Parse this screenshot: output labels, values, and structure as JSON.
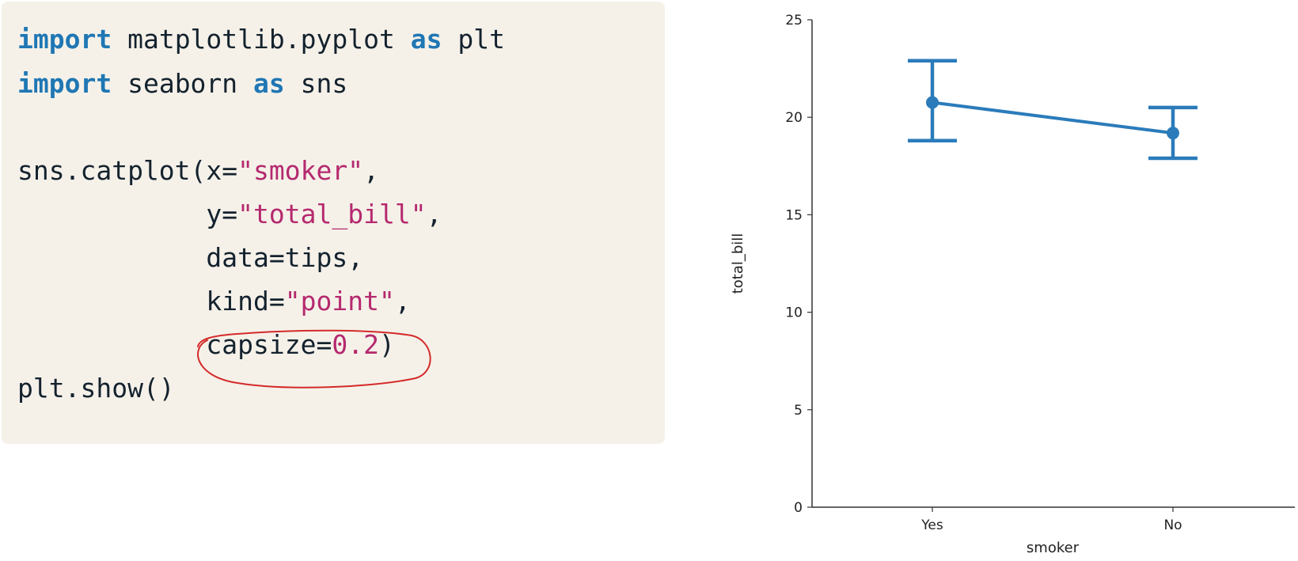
{
  "code": {
    "line1": {
      "kw1": "import",
      "t1": " matplotlib.pyplot ",
      "kw2": "as",
      "t2": " plt"
    },
    "line2": {
      "kw1": "import",
      "t1": " seaborn ",
      "kw2": "as",
      "t2": " sns"
    },
    "line4": {
      "t1": "sns.catplot(x=",
      "s1": "\"smoker\"",
      "t2": ","
    },
    "line5": {
      "indent": "            ",
      "t1": "y=",
      "s1": "\"total_bill\"",
      "t2": ","
    },
    "line6": {
      "indent": "            ",
      "t1": "data=tips,"
    },
    "line7": {
      "indent": "            ",
      "t1": "kind=",
      "s1": "\"point\"",
      "t2": ","
    },
    "line8": {
      "indent": "            ",
      "t1": "capsize=",
      "n1": "0.2",
      "t2": ")"
    },
    "line9": {
      "t1": "plt.show()"
    }
  },
  "colors": {
    "series": "#2b7bba",
    "annotation": "#d42a2a"
  },
  "chart_data": {
    "type": "point",
    "categories": [
      "Yes",
      "No"
    ],
    "values": [
      20.76,
      19.19
    ],
    "ci_low": [
      18.8,
      17.9
    ],
    "ci_high": [
      22.9,
      20.5
    ],
    "xlabel": "smoker",
    "ylabel": "total_bill",
    "ylim": [
      0,
      25
    ],
    "yticks": [
      0,
      5,
      10,
      15,
      20,
      25
    ],
    "grid": false
  }
}
